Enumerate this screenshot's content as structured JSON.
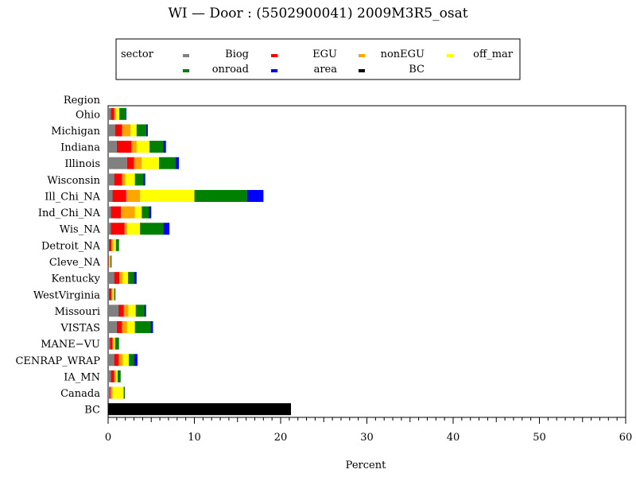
{
  "chart_data": {
    "type": "bar",
    "orientation": "horizontal",
    "stacked": true,
    "title": "WI — Door : (5502900041) 2009M3R5_osat",
    "xlabel": "Percent",
    "ylabel": "Region",
    "xlim": [
      0,
      60
    ],
    "x_ticks": [
      "0",
      "10",
      "20",
      "30",
      "40",
      "50",
      "60"
    ],
    "legend": {
      "title": "sector",
      "placement": "top"
    },
    "categories": [
      "Ohio",
      "Michigan",
      "Indiana",
      "Illinois",
      "Wisconsin",
      "Ill_Chi_NA",
      "Ind_Chi_NA",
      "Wis_NA",
      "Detroit_NA",
      "Cleve_NA",
      "Kentucky",
      "WestVirginia",
      "Missouri",
      "VISTAS",
      "MANE-VU",
      "CENRAP_WRAP",
      "IA_MN",
      "Canada",
      "BC"
    ],
    "category_labels": [
      "Ohio",
      "Michigan",
      "Indiana",
      "Illinois",
      "Wisconsin",
      "Ill_Chi_NA",
      "Ind_Chi_NA",
      "Wis_NA",
      "Detroit_NA",
      "Cleve_NA",
      "Kentucky",
      "WestVirginia",
      "Missouri",
      "VISTAS",
      "MANE−VU",
      "CENRAP_WRAP",
      "IA_MN",
      "Canada",
      "BC"
    ],
    "series": [
      {
        "name": "Biog",
        "color": "#808080",
        "values": [
          0.3,
          0.8,
          1.0,
          2.2,
          0.7,
          0.5,
          0.3,
          0.3,
          0.1,
          0.05,
          0.7,
          0.1,
          1.2,
          1.0,
          0.2,
          0.7,
          0.3,
          0.2,
          0
        ]
      },
      {
        "name": "EGU",
        "color": "#ff0000",
        "values": [
          0.4,
          0.8,
          1.7,
          0.8,
          0.9,
          1.6,
          1.2,
          1.6,
          0.3,
          0.05,
          0.6,
          0.3,
          0.6,
          0.6,
          0.3,
          0.5,
          0.4,
          0.1,
          0
        ]
      },
      {
        "name": "nonEGU",
        "color": "#ffa500",
        "values": [
          0.2,
          1.0,
          0.6,
          0.9,
          0.4,
          1.6,
          1.6,
          0.3,
          0.2,
          0.05,
          0.4,
          0.1,
          0.5,
          0.6,
          0.1,
          0.5,
          0.2,
          0.2,
          0
        ]
      },
      {
        "name": "off_mar",
        "color": "#ffff00",
        "values": [
          0.4,
          0.7,
          1.5,
          2.0,
          1.1,
          6.3,
          0.8,
          1.5,
          0.3,
          0.1,
          0.6,
          0.2,
          0.9,
          0.9,
          0.2,
          0.7,
          0.2,
          1.3,
          0
        ]
      },
      {
        "name": "onroad",
        "color": "#008000",
        "values": [
          0.7,
          1.1,
          1.6,
          1.9,
          1.0,
          6.1,
          0.8,
          2.7,
          0.3,
          0.1,
          0.7,
          0.1,
          1.0,
          1.8,
          0.4,
          0.6,
          0.3,
          0.1,
          0
        ]
      },
      {
        "name": "area",
        "color": "#0000ff",
        "values": [
          0.1,
          0.2,
          0.3,
          0.4,
          0.2,
          1.9,
          0.3,
          0.7,
          0.05,
          0.02,
          0.3,
          0.02,
          0.2,
          0.3,
          0.05,
          0.4,
          0.05,
          0.02,
          0
        ]
      },
      {
        "name": "BC",
        "color": "#000000",
        "values": [
          0,
          0,
          0,
          0,
          0,
          0,
          0,
          0,
          0,
          0,
          0,
          0,
          0,
          0,
          0,
          0,
          0,
          0,
          21.2
        ]
      }
    ],
    "grid": false
  }
}
